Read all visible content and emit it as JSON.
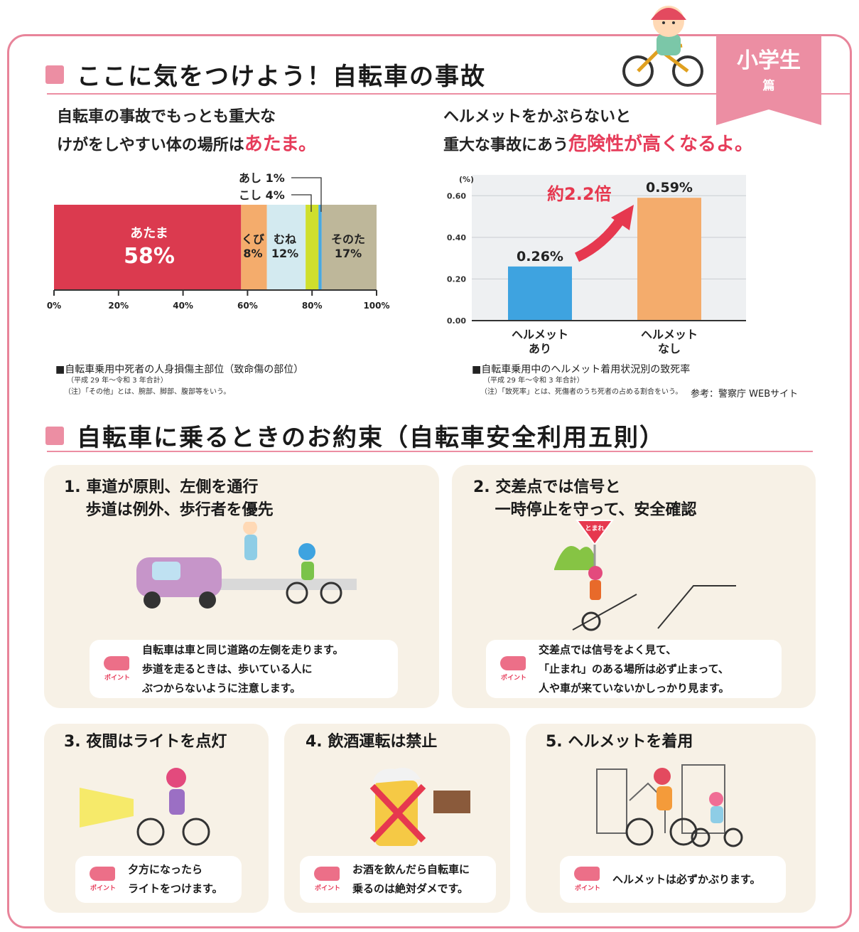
{
  "badge": {
    "grade": "小学生",
    "suffix": "篇"
  },
  "section1": {
    "title": "ここに気をつけよう！自転車の事故"
  },
  "left_panel": {
    "lead_line1": "自転車の事故でもっとも重大な",
    "lead_line2_prefix": "けがをしやすい体の場所は",
    "lead_line2_emph": "あたま。",
    "caption": "■自転車乗用中死者の人身損傷主部位（致命傷の部位）",
    "note1": "（平成 29 年～令和 3 年合計）",
    "note2": "（注）「その他」とは、腕部、脚部、腹部等をいう。"
  },
  "right_panel": {
    "lead_line1": "ヘルメットをかぶらないと",
    "lead_line2_prefix": "重大な事故にあう",
    "lead_line2_emph": "危険性が高くなるよ。",
    "caption": "■自転車乗用中のヘルメット着用状況別の致死率",
    "note1": "（平成 29 年～令和 3 年合計）",
    "note2": "（注）「致死率」とは、死傷者のうち死者の占める割合をいう。",
    "source": "参考：警察庁 WEBサイト"
  },
  "chart_data": [
    {
      "type": "bar",
      "orientation": "horizontal-stacked",
      "series": [
        {
          "name": "あたま",
          "values": [
            58
          ],
          "color": "#db3a4f"
        },
        {
          "name": "くび",
          "values": [
            8
          ],
          "color": "#f4ac6c"
        },
        {
          "name": "むね",
          "values": [
            12
          ],
          "color": "#d3eaf0"
        },
        {
          "name": "こし",
          "values": [
            4
          ],
          "color": "#cfdf2d"
        },
        {
          "name": "あし",
          "values": [
            1
          ],
          "color": "#4aa8e0"
        },
        {
          "name": "そのた",
          "values": [
            17
          ],
          "color": "#beb79a"
        }
      ],
      "segment_labels": [
        "あたま",
        "58%",
        "くび",
        "8%",
        "むね",
        "12%",
        "そのた",
        "17%"
      ],
      "callouts": [
        "あし 1%",
        "こし 4%"
      ],
      "xticks": [
        "0%",
        "20%",
        "40%",
        "60%",
        "80%",
        "100%"
      ],
      "xlim": [
        0,
        100
      ]
    },
    {
      "type": "bar",
      "categories": [
        "ヘルメット\nあり",
        "ヘルメット\nなし"
      ],
      "values": [
        0.26,
        0.59
      ],
      "value_labels": [
        "0.26%",
        "0.59%"
      ],
      "colors": [
        "#3ea3e0",
        "#f4ac6c"
      ],
      "yunit": "(%)",
      "yticks": [
        "0.00",
        "0.20",
        "0.40",
        "0.60"
      ],
      "ylim": [
        0,
        0.7
      ],
      "annotation": "約2.2倍",
      "grid": true
    }
  ],
  "section2": {
    "title": "自転車に乗るときのお約束（自転車安全利用五則）"
  },
  "rules": [
    {
      "heading": "1. 車道が原則、左側を通行\n    歩道は例外、歩行者を優先",
      "point": "自転車は車と同じ道路の左側を走ります。\n歩道を走るときは、歩いている人に\nぶつからないように注意します。",
      "point_label": "ポイント"
    },
    {
      "heading": "2. 交差点では信号と\n    一時停止を守って、安全確認",
      "point": "交差点では信号をよく見て、\n「止まれ」のある場所は必ず止まって、\n人や車が来ていないかしっかり見ます。",
      "point_label": "ポイント",
      "sign": "とまれ"
    },
    {
      "heading": "3. 夜間はライトを点灯",
      "point": "夕方になったら\nライトをつけます。",
      "point_label": "ポイント"
    },
    {
      "heading": "4. 飲酒運転は禁止",
      "point": "お酒を飲んだら自転車に\n乗るのは絶対ダメです。",
      "point_label": "ポイント"
    },
    {
      "heading": "5. ヘルメットを着用",
      "point": "ヘルメットは必ずかぶります。",
      "point_label": "ポイント"
    }
  ]
}
